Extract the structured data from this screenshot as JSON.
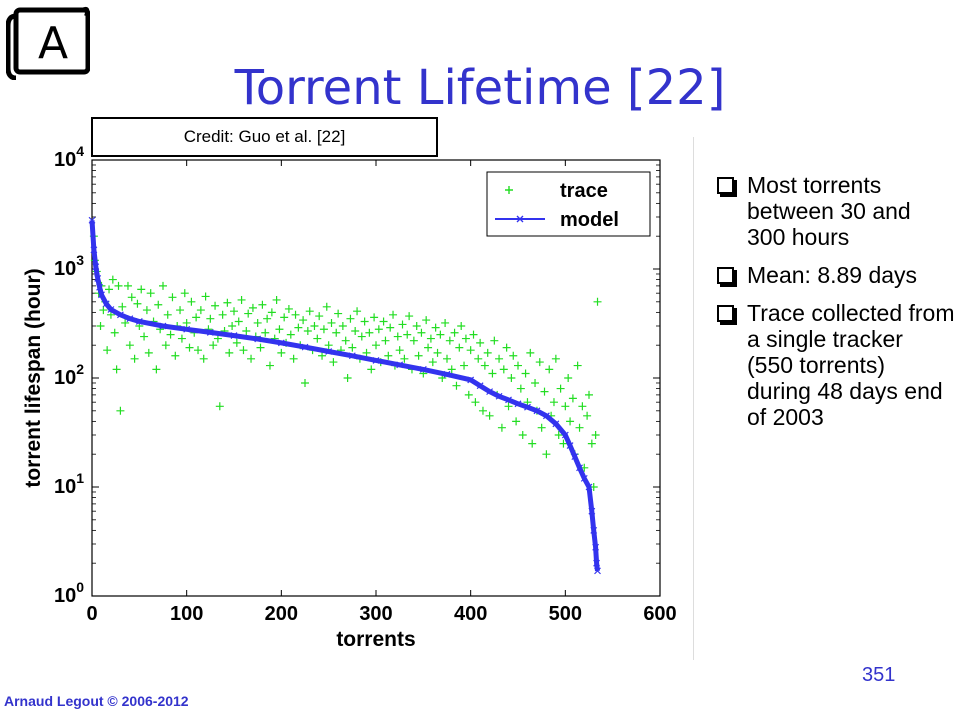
{
  "badge_letter": "A",
  "title": "Torrent Lifetime [22]",
  "credit": "Credit: Guo et al. [22]",
  "bullets": [
    "Most torrents between 30 and 300 hours",
    "Mean: 8.89 days",
    "Trace collected from a single tracker (550 torrents) during 48 days end of 2003"
  ],
  "page_number": "351",
  "footer": "Arnaud Legout © 2006-2012",
  "colors": {
    "title": "#3333cc",
    "trace": "#22dd22",
    "model": "#3333ee"
  },
  "chart_data": {
    "type": "scatter",
    "xlabel": "torrents",
    "ylabel": "torrent lifespan (hour)",
    "xlim": [
      0,
      600
    ],
    "ylim": [
      1,
      10000
    ],
    "yscale": "log",
    "grid": false,
    "legend_position": "top-right",
    "xticks": [
      0,
      100,
      200,
      300,
      400,
      500,
      600
    ],
    "yticks": [
      {
        "value": 1,
        "base": "10",
        "exp": "0"
      },
      {
        "value": 10,
        "base": "10",
        "exp": "1"
      },
      {
        "value": 100,
        "base": "10",
        "exp": "2"
      },
      {
        "value": 1000,
        "base": "10",
        "exp": "3"
      },
      {
        "value": 10000,
        "base": "10",
        "exp": "4"
      }
    ],
    "series": [
      {
        "name": "trace",
        "marker": "+",
        "points": [
          [
            2,
            2000
          ],
          [
            3,
            1200
          ],
          [
            5,
            950
          ],
          [
            7,
            600
          ],
          [
            9,
            300
          ],
          [
            10,
            700
          ],
          [
            12,
            420
          ],
          [
            14,
            500
          ],
          [
            16,
            180
          ],
          [
            18,
            650
          ],
          [
            20,
            380
          ],
          [
            22,
            800
          ],
          [
            24,
            260
          ],
          [
            26,
            120
          ],
          [
            28,
            700
          ],
          [
            30,
            50
          ],
          [
            32,
            450
          ],
          [
            35,
            320
          ],
          [
            38,
            700
          ],
          [
            40,
            200
          ],
          [
            42,
            550
          ],
          [
            45,
            150
          ],
          [
            48,
            480
          ],
          [
            50,
            300
          ],
          [
            52,
            650
          ],
          [
            55,
            240
          ],
          [
            58,
            420
          ],
          [
            60,
            170
          ],
          [
            62,
            600
          ],
          [
            65,
            330
          ],
          [
            68,
            120
          ],
          [
            70,
            470
          ],
          [
            72,
            280
          ],
          [
            75,
            700
          ],
          [
            78,
            200
          ],
          [
            80,
            380
          ],
          [
            83,
            250
          ],
          [
            85,
            550
          ],
          [
            88,
            160
          ],
          [
            90,
            300
          ],
          [
            93,
            420
          ],
          [
            95,
            230
          ],
          [
            98,
            600
          ],
          [
            100,
            320
          ],
          [
            103,
            190
          ],
          [
            105,
            500
          ],
          [
            108,
            260
          ],
          [
            110,
            360
          ],
          [
            112,
            180
          ],
          [
            115,
            420
          ],
          [
            118,
            150
          ],
          [
            120,
            560
          ],
          [
            123,
            280
          ],
          [
            125,
            350
          ],
          [
            128,
            200
          ],
          [
            130,
            460
          ],
          [
            133,
            230
          ],
          [
            135,
            55
          ],
          [
            138,
            380
          ],
          [
            140,
            270
          ],
          [
            143,
            490
          ],
          [
            145,
            170
          ],
          [
            148,
            300
          ],
          [
            150,
            410
          ],
          [
            153,
            210
          ],
          [
            155,
            330
          ],
          [
            158,
            520
          ],
          [
            160,
            180
          ],
          [
            163,
            270
          ],
          [
            165,
            390
          ],
          [
            168,
            150
          ],
          [
            170,
            440
          ],
          [
            173,
            240
          ],
          [
            175,
            320
          ],
          [
            178,
            190
          ],
          [
            180,
            470
          ],
          [
            183,
            260
          ],
          [
            185,
            350
          ],
          [
            188,
            130
          ],
          [
            190,
            400
          ],
          [
            193,
            230
          ],
          [
            195,
            520
          ],
          [
            198,
            280
          ],
          [
            200,
            170
          ],
          [
            203,
            360
          ],
          [
            205,
            210
          ],
          [
            208,
            430
          ],
          [
            210,
            250
          ],
          [
            213,
            150
          ],
          [
            215,
            380
          ],
          [
            218,
            290
          ],
          [
            220,
            200
          ],
          [
            223,
            340
          ],
          [
            225,
            90
          ],
          [
            228,
            270
          ],
          [
            230,
            410
          ],
          [
            233,
            180
          ],
          [
            235,
            300
          ],
          [
            238,
            230
          ],
          [
            240,
            370
          ],
          [
            243,
            160
          ],
          [
            245,
            280
          ],
          [
            248,
            450
          ],
          [
            250,
            200
          ],
          [
            253,
            320
          ],
          [
            255,
            140
          ],
          [
            258,
            260
          ],
          [
            260,
            390
          ],
          [
            263,
            180
          ],
          [
            265,
            300
          ],
          [
            268,
            220
          ],
          [
            270,
            100
          ],
          [
            273,
            350
          ],
          [
            275,
            190
          ],
          [
            278,
            270
          ],
          [
            280,
            410
          ],
          [
            283,
            150
          ],
          [
            285,
            240
          ],
          [
            288,
            330
          ],
          [
            290,
            170
          ],
          [
            293,
            260
          ],
          [
            295,
            120
          ],
          [
            298,
            360
          ],
          [
            300,
            200
          ],
          [
            303,
            280
          ],
          [
            305,
            140
          ],
          [
            308,
            330
          ],
          [
            310,
            220
          ],
          [
            313,
            160
          ],
          [
            315,
            290
          ],
          [
            318,
            380
          ],
          [
            320,
            130
          ],
          [
            323,
            240
          ],
          [
            325,
            180
          ],
          [
            328,
            310
          ],
          [
            330,
            150
          ],
          [
            333,
            250
          ],
          [
            335,
            370
          ],
          [
            338,
            120
          ],
          [
            340,
            220
          ],
          [
            343,
            300
          ],
          [
            345,
            160
          ],
          [
            348,
            260
          ],
          [
            350,
            110
          ],
          [
            353,
            340
          ],
          [
            355,
            190
          ],
          [
            358,
            230
          ],
          [
            360,
            140
          ],
          [
            363,
            290
          ],
          [
            365,
            170
          ],
          [
            368,
            250
          ],
          [
            370,
            100
          ],
          [
            373,
            320
          ],
          [
            375,
            150
          ],
          [
            378,
            220
          ],
          [
            380,
            120
          ],
          [
            383,
            260
          ],
          [
            385,
            85
          ],
          [
            388,
            190
          ],
          [
            390,
            300
          ],
          [
            393,
            130
          ],
          [
            395,
            230
          ],
          [
            398,
            70
          ],
          [
            400,
            180
          ],
          [
            403,
            250
          ],
          [
            405,
            60
          ],
          [
            408,
            150
          ],
          [
            410,
            210
          ],
          [
            413,
            50
          ],
          [
            415,
            130
          ],
          [
            418,
            170
          ],
          [
            420,
            45
          ],
          [
            423,
            110
          ],
          [
            425,
            220
          ],
          [
            428,
            70
          ],
          [
            430,
            150
          ],
          [
            433,
            35
          ],
          [
            435,
            120
          ],
          [
            438,
            190
          ],
          [
            440,
            55
          ],
          [
            443,
            100
          ],
          [
            445,
            160
          ],
          [
            448,
            40
          ],
          [
            450,
            130
          ],
          [
            453,
            80
          ],
          [
            455,
            30
          ],
          [
            458,
            110
          ],
          [
            460,
            60
          ],
          [
            463,
            170
          ],
          [
            465,
            25
          ],
          [
            468,
            90
          ],
          [
            470,
            50
          ],
          [
            473,
            140
          ],
          [
            475,
            35
          ],
          [
            478,
            75
          ],
          [
            480,
            20
          ],
          [
            483,
            120
          ],
          [
            485,
            45
          ],
          [
            488,
            60
          ],
          [
            490,
            150
          ],
          [
            493,
            30
          ],
          [
            495,
            80
          ],
          [
            498,
            25
          ],
          [
            500,
            55
          ],
          [
            503,
            100
          ],
          [
            505,
            40
          ],
          [
            508,
            65
          ],
          [
            510,
            20
          ],
          [
            513,
            130
          ],
          [
            515,
            35
          ],
          [
            518,
            55
          ],
          [
            520,
            15
          ],
          [
            523,
            45
          ],
          [
            525,
            70
          ],
          [
            528,
            25
          ],
          [
            530,
            10
          ],
          [
            532,
            30
          ],
          [
            534,
            500
          ]
        ]
      },
      {
        "name": "model",
        "marker": "x",
        "points": [
          [
            0,
            2800
          ],
          [
            2,
            1500
          ],
          [
            4,
            1050
          ],
          [
            6,
            820
          ],
          [
            8,
            680
          ],
          [
            10,
            580
          ],
          [
            15,
            480
          ],
          [
            20,
            425
          ],
          [
            30,
            380
          ],
          [
            40,
            350
          ],
          [
            50,
            330
          ],
          [
            75,
            300
          ],
          [
            100,
            280
          ],
          [
            125,
            262
          ],
          [
            150,
            245
          ],
          [
            175,
            228
          ],
          [
            200,
            210
          ],
          [
            225,
            192
          ],
          [
            250,
            175
          ],
          [
            275,
            160
          ],
          [
            300,
            145
          ],
          [
            325,
            132
          ],
          [
            350,
            120
          ],
          [
            375,
            108
          ],
          [
            400,
            96
          ],
          [
            410,
            85
          ],
          [
            420,
            75
          ],
          [
            430,
            68
          ],
          [
            440,
            63
          ],
          [
            450,
            58
          ],
          [
            460,
            54
          ],
          [
            470,
            50
          ],
          [
            480,
            45
          ],
          [
            490,
            38
          ],
          [
            500,
            30
          ],
          [
            505,
            24
          ],
          [
            510,
            19
          ],
          [
            515,
            15
          ],
          [
            520,
            12
          ],
          [
            525,
            10
          ],
          [
            528,
            6
          ],
          [
            530,
            4
          ],
          [
            532,
            2.8
          ],
          [
            533,
            2.0
          ],
          [
            534,
            1.7
          ]
        ]
      }
    ]
  }
}
